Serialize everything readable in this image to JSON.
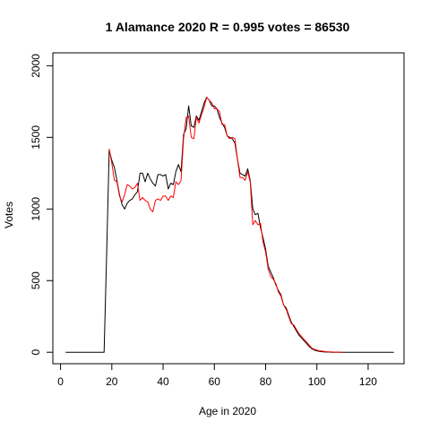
{
  "chart_data": {
    "type": "line",
    "title": "1 Alamance 2020 R = 0.995 votes = 86530",
    "xlabel": "Age in 2020",
    "ylabel": "Votes",
    "xlim": [
      -3,
      134
    ],
    "ylim": [
      -80,
      2090
    ],
    "xticks": [
      0,
      20,
      40,
      60,
      80,
      100,
      120
    ],
    "yticks": [
      0,
      500,
      1000,
      1500,
      2000
    ],
    "grid": false,
    "series": [
      {
        "color": "#000000",
        "x": [
          2,
          17,
          18,
          19,
          20,
          21,
          22,
          23,
          24,
          25,
          26,
          27,
          28,
          29,
          30,
          31,
          32,
          33,
          34,
          35,
          36,
          37,
          38,
          39,
          40,
          41,
          42,
          43,
          44,
          45,
          46,
          47,
          48,
          49,
          50,
          51,
          52,
          53,
          54,
          55,
          56,
          57,
          58,
          59,
          60,
          61,
          62,
          63,
          64,
          65,
          66,
          67,
          68,
          69,
          70,
          71,
          72,
          73,
          74,
          75,
          76,
          77,
          78,
          79,
          80,
          81,
          82,
          83,
          84,
          85,
          86,
          87,
          88,
          89,
          90,
          91,
          92,
          93,
          94,
          95,
          96,
          97,
          98,
          99,
          100,
          101,
          102,
          103,
          104,
          105,
          106,
          107,
          108,
          110,
          115,
          120,
          125,
          130
        ],
        "y": [
          0,
          0,
          700,
          1410,
          1340,
          1290,
          1200,
          1100,
          1030,
          1000,
          1040,
          1060,
          1070,
          1100,
          1120,
          1250,
          1250,
          1190,
          1250,
          1210,
          1180,
          1160,
          1240,
          1240,
          1230,
          1240,
          1140,
          1180,
          1170,
          1260,
          1310,
          1260,
          1520,
          1560,
          1720,
          1580,
          1570,
          1650,
          1620,
          1680,
          1740,
          1780,
          1760,
          1720,
          1720,
          1700,
          1640,
          1600,
          1570,
          1510,
          1500,
          1490,
          1460,
          1350,
          1250,
          1240,
          1230,
          1280,
          1200,
          1000,
          960,
          970,
          870,
          800,
          720,
          600,
          560,
          520,
          470,
          430,
          400,
          330,
          310,
          260,
          210,
          180,
          150,
          120,
          100,
          80,
          60,
          40,
          25,
          15,
          10,
          6,
          4,
          2,
          1,
          1,
          0,
          0,
          0,
          0,
          0,
          0,
          0,
          0
        ]
      },
      {
        "color": "#ff0000",
        "x": [
          19,
          20,
          21,
          22,
          23,
          24,
          25,
          26,
          27,
          28,
          29,
          30,
          31,
          32,
          33,
          34,
          35,
          36,
          37,
          38,
          39,
          40,
          41,
          42,
          43,
          44,
          45,
          46,
          47,
          48,
          49,
          50,
          51,
          52,
          53,
          54,
          55,
          56,
          57,
          58,
          59,
          60,
          61,
          62,
          63,
          64,
          65,
          66,
          67,
          68,
          69,
          70,
          71,
          72,
          73,
          74,
          75,
          76,
          77,
          78,
          79,
          80,
          81,
          82,
          83,
          84,
          85,
          86,
          87,
          88,
          89,
          90,
          91,
          92,
          93,
          94,
          95,
          96,
          97,
          98,
          99,
          100,
          101,
          102,
          103,
          104,
          105,
          106,
          107,
          108,
          109,
          110
        ],
        "y": [
          1420,
          1320,
          1200,
          1190,
          1090,
          1050,
          1100,
          1170,
          1160,
          1140,
          1150,
          1180,
          1060,
          1080,
          1060,
          1050,
          1000,
          980,
          1060,
          1070,
          1060,
          1090,
          1090,
          1060,
          1090,
          1080,
          1190,
          1170,
          1200,
          1490,
          1640,
          1650,
          1500,
          1490,
          1640,
          1600,
          1660,
          1710,
          1780,
          1760,
          1740,
          1700,
          1700,
          1680,
          1590,
          1590,
          1510,
          1490,
          1500,
          1490,
          1350,
          1220,
          1220,
          1200,
          1260,
          1190,
          890,
          920,
          890,
          900,
          770,
          700,
          580,
          530,
          510,
          480,
          420,
          390,
          330,
          300,
          250,
          200,
          190,
          160,
          130,
          110,
          90,
          70,
          50,
          30,
          20,
          15,
          10,
          8,
          5,
          4,
          3,
          2,
          1,
          1,
          0,
          0
        ]
      }
    ]
  }
}
